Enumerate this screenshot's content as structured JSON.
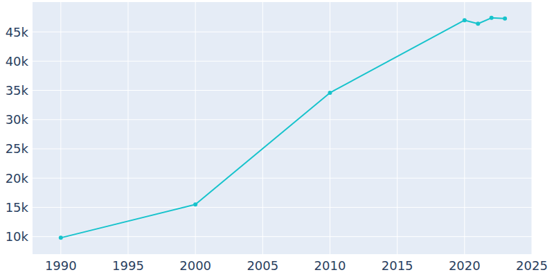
{
  "chart_data": {
    "type": "line",
    "x": [
      1990,
      2000,
      2010,
      2020,
      2021,
      2022,
      2023
    ],
    "values": [
      9800,
      15500,
      34600,
      47000,
      46400,
      47400,
      47300
    ],
    "color": "#17c3cc",
    "marker": "circle",
    "xlim": [
      1987.9,
      2025
    ],
    "xticks": [
      1990,
      1995,
      2000,
      2005,
      2010,
      2015,
      2020,
      2025
    ],
    "ylim": [
      7000,
      50100
    ],
    "yticks": [
      {
        "value": 10000,
        "label": "10k"
      },
      {
        "value": 15000,
        "label": "15k"
      },
      {
        "value": 20000,
        "label": "20k"
      },
      {
        "value": 25000,
        "label": "25k"
      },
      {
        "value": 30000,
        "label": "30k"
      },
      {
        "value": 35000,
        "label": "35k"
      },
      {
        "value": 40000,
        "label": "40k"
      },
      {
        "value": 45000,
        "label": "45k"
      }
    ],
    "grid": true
  }
}
